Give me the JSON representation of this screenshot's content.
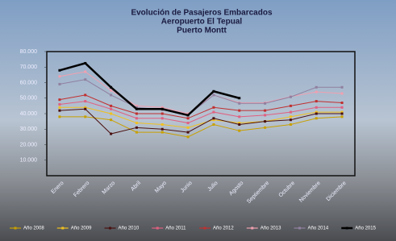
{
  "chart_data": {
    "type": "line",
    "title": [
      "Evolución de Pasajeros Embarcados",
      "Aeropuerto El Tepual",
      "Puerto Montt"
    ],
    "categories": [
      "Enero",
      "Febrero",
      "Marzo",
      "Abril",
      "Mayo",
      "Junio",
      "Julio",
      "Agosto",
      "Septiembre",
      "Octubre",
      "Noviembre",
      "Diciembre"
    ],
    "ylim": [
      0,
      80000
    ],
    "yticks": [
      {
        "value": 10000,
        "label": "10.000"
      },
      {
        "value": 20000,
        "label": "20.000"
      },
      {
        "value": 30000,
        "label": "30.000"
      },
      {
        "value": 40000,
        "label": "40.000"
      },
      {
        "value": 50000,
        "label": "50.000"
      },
      {
        "value": 60000,
        "label": "60.000"
      },
      {
        "value": 70000,
        "label": "70.000"
      },
      {
        "value": 80000,
        "label": "80.000"
      }
    ],
    "series": [
      {
        "name": "Año 2008",
        "color": "#c8a000",
        "values": [
          38000,
          38000,
          36000,
          28000,
          28000,
          25000,
          33000,
          29000,
          31000,
          33000,
          37000,
          38000
        ]
      },
      {
        "name": "Año 2009",
        "color": "#f0c020",
        "values": [
          44000,
          44000,
          40000,
          34000,
          33000,
          31000,
          36000,
          34000,
          35000,
          38000,
          41000,
          41000
        ]
      },
      {
        "name": "Año 2010",
        "color": "#4a1010",
        "values": [
          42000,
          43000,
          27000,
          31000,
          30000,
          28000,
          37000,
          33000,
          35000,
          36000,
          40000,
          40000
        ]
      },
      {
        "name": "Año 2011",
        "color": "#e06080",
        "values": [
          46000,
          48000,
          43000,
          37000,
          37000,
          34000,
          41000,
          38000,
          39000,
          41000,
          44000,
          44000
        ]
      },
      {
        "name": "Año 2012",
        "color": "#c03030",
        "values": [
          49000,
          52000,
          45000,
          40000,
          40000,
          37000,
          44000,
          42000,
          42000,
          45000,
          48000,
          47000
        ]
      },
      {
        "name": "Año 2013",
        "color": "#f0a0b0",
        "values": [
          64000,
          67000,
          55000,
          45000,
          44000,
          40000,
          52000,
          47000,
          47000,
          51000,
          54000,
          53000
        ]
      },
      {
        "name": "Año 2014",
        "color": "#9080a0",
        "values": [
          59000,
          62000,
          52000,
          44000,
          42500,
          39000,
          52000,
          46600,
          46600,
          50800,
          57000,
          57000
        ]
      },
      {
        "name": "Año 2015",
        "color": "#000000",
        "values": [
          67900,
          72500,
          57000,
          43000,
          43000,
          39000,
          54400,
          50000,
          null,
          null,
          null,
          null
        ]
      }
    ]
  }
}
